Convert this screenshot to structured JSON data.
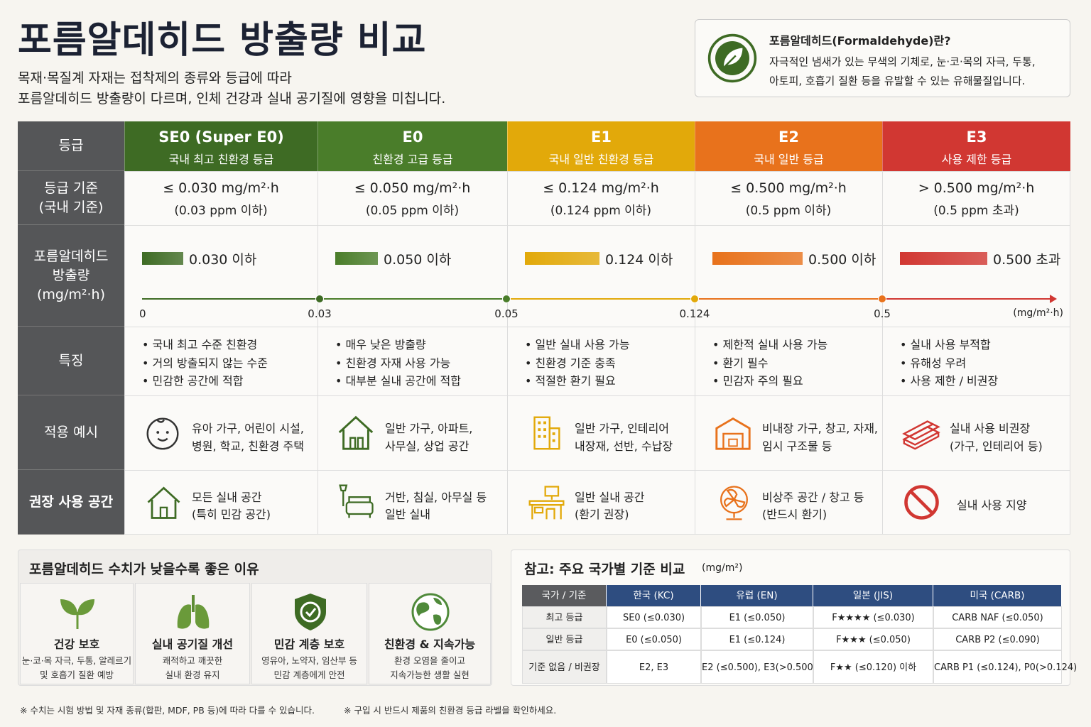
{
  "header": {
    "title": "포름알데히드 방출량 비교",
    "subtitle_lines": [
      "목재·목질계 자재는 접착제의 종류와 등급에 따라",
      "포름알데히드 방출량이 다르며, 인체 건강과 실내 공기질에 영향을 미칩니다."
    ]
  },
  "info_box": {
    "title": "포름알데히드(Formaldehyde)란?",
    "lines": [
      "자극적인 냄새가 있는 무색의 기체로, 눈·코·목의 자극, 두통,",
      "아토피, 호흡기 질환 등을 유발할 수 있는 유해물질입니다."
    ]
  },
  "grade_table": {
    "row_headers": [
      [
        "등급"
      ],
      [
        "등급 기준",
        "(국내 기준)"
      ],
      [
        "포름알데히드",
        "방출량",
        "(mg/m²·h)"
      ],
      [
        "특징"
      ],
      [
        "적용 예시"
      ],
      [
        "권장 사용 공간"
      ]
    ],
    "grades": [
      {
        "name": "SE0 (Super E0)",
        "subtitle": "국내 최고 친환경 등급",
        "color": "#3e6b24",
        "criterion": [
          "≤ 0.030 mg/m²·h",
          "(0.03 ppm 이하)"
        ],
        "emission_label": "0.030 이하",
        "features": [
          "국내 최고 수준 친환경",
          "거의 방출되지 않는 수준",
          "민감한 공간에 적합"
        ],
        "example": [
          "유아 가구, 어린이 시설,",
          "병원, 학교, 친환경 주택"
        ],
        "space": [
          "모든 실내 공간",
          "(특히 민감 공간)"
        ]
      },
      {
        "name": "E0",
        "subtitle": "친환경 고급 등급",
        "color": "#4a7d2a",
        "criterion": [
          "≤ 0.050 mg/m²·h",
          "(0.05 ppm 이하)"
        ],
        "emission_label": "0.050 이하",
        "features": [
          "매우 낮은 방출량",
          "친환경 자재 사용 가능",
          "대부분 실내 공간에 적합"
        ],
        "example": [
          "일반 가구, 아파트,",
          "사무실, 상업 공간"
        ],
        "space": [
          "거반, 침실, 아무실 등",
          "일반 실내"
        ]
      },
      {
        "name": "E1",
        "subtitle": "국내 일반 친환경 등급",
        "color": "#e2a90a",
        "criterion": [
          "≤ 0.124 mg/m²·h",
          "(0.124 ppm 이하)"
        ],
        "emission_label": "0.124 이하",
        "features": [
          "일반 실내 사용 가능",
          "친환경 기준 충족",
          "적절한 환기 필요"
        ],
        "example": [
          "일반 가구, 인테리어",
          "내장재, 선반, 수납장"
        ],
        "space": [
          "일반 실내 공간",
          "(환기 권장)"
        ]
      },
      {
        "name": "E2",
        "subtitle": "국내 일반 등급",
        "color": "#e8721c",
        "criterion": [
          "≤ 0.500 mg/m²·h",
          "(0.5 ppm 이하)"
        ],
        "emission_label": "0.500 이하",
        "features": [
          "제한적 실내 사용 가능",
          "환기 필수",
          "민감자 주의 필요"
        ],
        "example": [
          "비내장 가구, 창고, 자재,",
          "임시 구조물 등"
        ],
        "space": [
          "비상주 공간 / 창고 등",
          "(반드시 환기)"
        ]
      },
      {
        "name": "E3",
        "subtitle": "사용 제한 등급",
        "color": "#d13732",
        "criterion": [
          "> 0.500 mg/m²·h",
          "(0.5 ppm 초과)"
        ],
        "emission_label": "0.500 초과",
        "features": [
          "실내 사용 부적합",
          "유해성 우려",
          "사용 제한 / 비권장"
        ],
        "example": [
          "실내 사용 비권장",
          "(가구, 인테리어 등)"
        ],
        "space": [
          "실내 사용 지양"
        ]
      }
    ],
    "scale": {
      "ticks": [
        "0",
        "0.03",
        "0.05",
        "0.124",
        "0.5"
      ],
      "unit": "(mg/m²·h)"
    }
  },
  "benefits": {
    "title": "포름알데히드 수치가 낮을수록 좋은 이유",
    "items": [
      {
        "title": "건강 보호",
        "lines": [
          "눈·코·목 자극, 두통, 알레르기",
          "및 호흡기 질환 예방"
        ]
      },
      {
        "title": "실내 공기질 개선",
        "lines": [
          "쾌적하고 깨끗한",
          "실내 환경 유지"
        ]
      },
      {
        "title": "민감 계층 보호",
        "lines": [
          "영유아, 노약자, 임산부 등",
          "민감 계층에게 안전"
        ]
      },
      {
        "title": "친환경 & 지속가능",
        "lines": [
          "환경 오염을 줄이고",
          "지속가능한 생활 실현"
        ]
      }
    ]
  },
  "reference": {
    "title": "참고:  주요 국가별 기준 비교",
    "unit": "(mg/m²)",
    "columns": [
      "국가 / 기준",
      "한국 (KC)",
      "유럽 (EN)",
      "일본 (JIS)",
      "미국 (CARB)"
    ],
    "rows": [
      [
        "최고 등급",
        "SE0 (≤0.030)",
        "E1 (≤0.050)",
        "F★★★★ (≤0.030)",
        "CARB NAF (≤0.050)"
      ],
      [
        "일반 등급",
        "E0 (≤0.050)",
        "E1 (≤0.124)",
        "F★★★ (≤0.050)",
        "CARB P2 (≤0.090)"
      ],
      [
        "기준 없음 / 비권장",
        "E2, E3",
        "E2 (≤0.500), E3(>0.500)",
        "F★★ (≤0.120) 이하",
        "CARB P1 (≤0.124), P0(>0.124)"
      ]
    ]
  },
  "footnotes": [
    "※ 수치는 시험 방법 및 자재 종류(합판, MDF, PB 등)에 따라 다를 수 있습니다.",
    "※ 구입 시 반드시 제품의 친환경 등급 라벨을 확인하세요."
  ]
}
